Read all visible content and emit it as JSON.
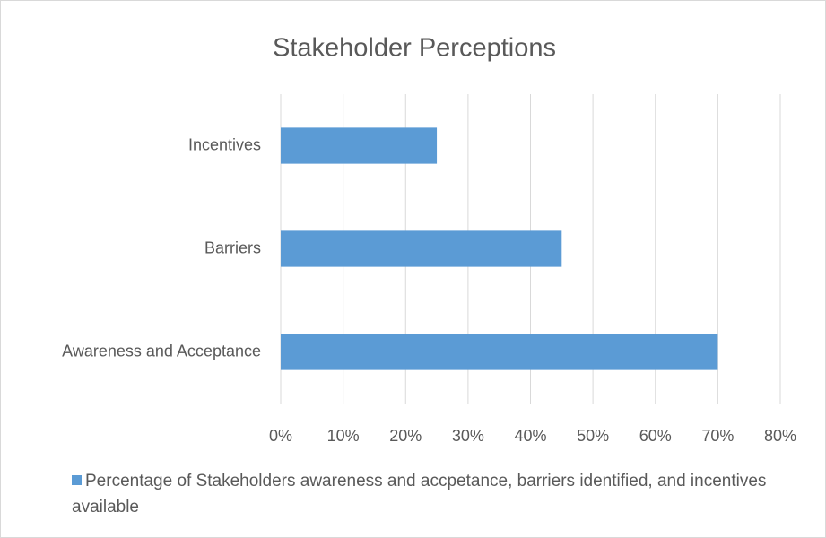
{
  "chart_data": {
    "type": "bar",
    "orientation": "horizontal",
    "title": "Stakeholder Perceptions",
    "categories": [
      "Awareness and Acceptance",
      "Barriers",
      "Incentives"
    ],
    "series": [
      {
        "name": "Percentage of Stakeholders awareness and accpetance, barriers identified, and incentives available",
        "color": "#5b9bd5",
        "values": [
          70,
          45,
          25
        ]
      }
    ],
    "xlim": [
      0,
      80
    ],
    "xticks": [
      {
        "value": 0,
        "label": "0%"
      },
      {
        "value": 10,
        "label": "10%"
      },
      {
        "value": 20,
        "label": "20%"
      },
      {
        "value": 30,
        "label": "30%"
      },
      {
        "value": 40,
        "label": "40%"
      },
      {
        "value": 50,
        "label": "50%"
      },
      {
        "value": 60,
        "label": "60%"
      },
      {
        "value": 70,
        "label": "70%"
      },
      {
        "value": 80,
        "label": "80%"
      }
    ],
    "grid": true,
    "legend": "bottom"
  }
}
